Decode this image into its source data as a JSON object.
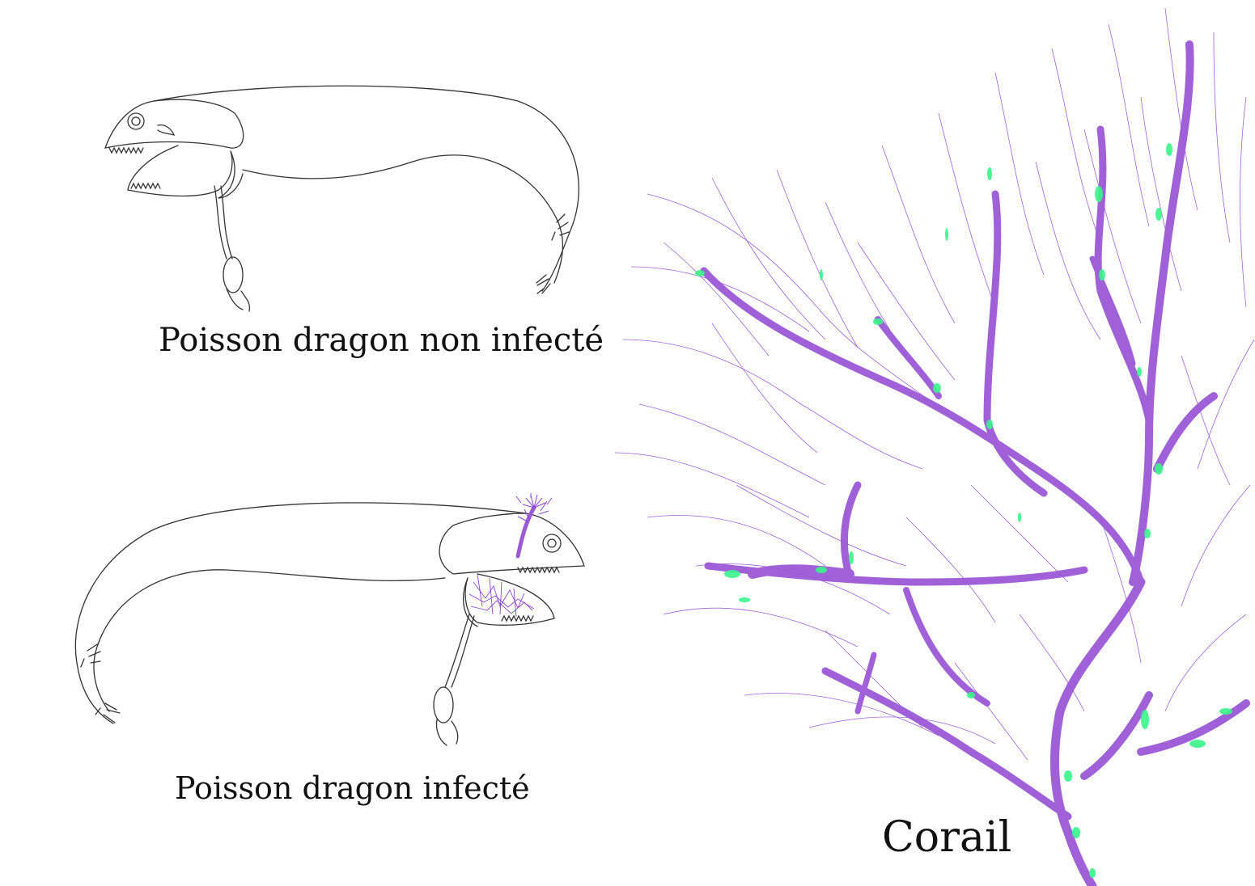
{
  "labels": {
    "uninfected": "Poisson dragon non infecté",
    "infected": "Poisson dragon infecté",
    "coral": "Corail"
  },
  "colors": {
    "line": "#333333",
    "coral_main": "#9b59d6",
    "coral_thin": "#8e44d4",
    "coral_spot": "#3af58a"
  }
}
